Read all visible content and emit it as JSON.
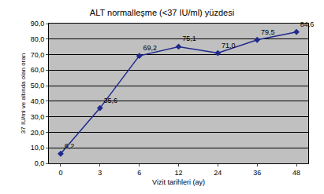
{
  "chart_data": {
    "type": "line",
    "title": "ALT normalleşme (<37 IU/ml) yüzdesi",
    "x_label": "Vizit tarihleri (ay)",
    "y_label": "37 IU/ml ve altında olan oran",
    "categories": [
      "0",
      "3",
      "6",
      "12",
      "24",
      "36",
      "48"
    ],
    "values": [
      6.2,
      35.6,
      69.2,
      75.1,
      71.0,
      79.5,
      84.6
    ],
    "value_labels": [
      "6,2",
      "35,6",
      "69,2",
      "75,1",
      "71,0",
      "79,5",
      "84,6"
    ],
    "data_labels": true,
    "color": "#1f2a8c",
    "marker": "diamond",
    "ylim": [
      0,
      90
    ],
    "yticks": [
      {
        "value": 0,
        "label": "0,0"
      },
      {
        "value": 10,
        "label": "10,0"
      },
      {
        "value": 20,
        "label": "20,0"
      },
      {
        "value": 30,
        "label": "30,0"
      },
      {
        "value": 40,
        "label": "40,0"
      },
      {
        "value": 50,
        "label": "50,0"
      },
      {
        "value": 60,
        "label": "60,0"
      },
      {
        "value": 70,
        "label": "70,0"
      },
      {
        "value": 80,
        "label": "80,0"
      },
      {
        "value": 90,
        "label": "90,0"
      }
    ],
    "grid": true
  }
}
